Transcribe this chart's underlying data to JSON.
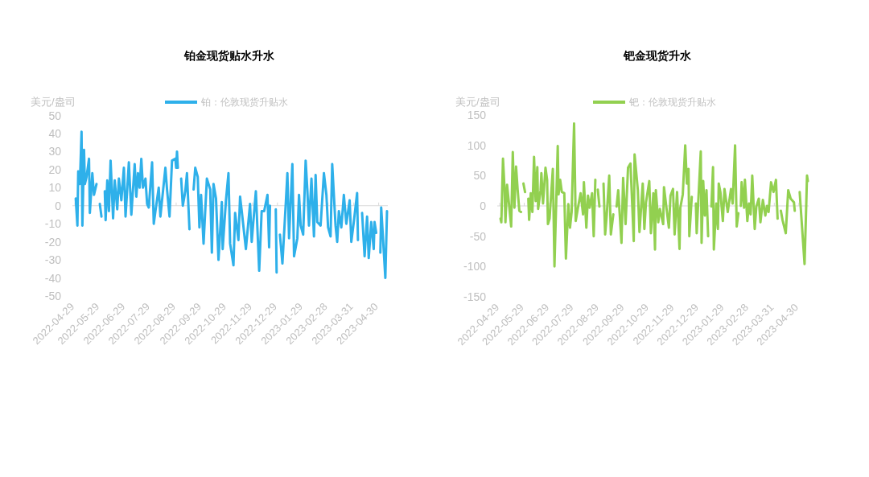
{
  "chart_data": [
    {
      "type": "line",
      "title": "铂金现货贴水升水",
      "ylabel": "美元/盎司",
      "ylim": [
        -50,
        50
      ],
      "yticks": [
        -50,
        -40,
        -30,
        -20,
        -10,
        0,
        10,
        20,
        30,
        40,
        50
      ],
      "xlim": [
        "2022-04-26",
        "2023-05-11"
      ],
      "xticks": [
        "2022-04-29",
        "2022-05-29",
        "2022-06-29",
        "2022-07-29",
        "2022-08-29",
        "2022-09-29",
        "2022-10-29",
        "2022-11-29",
        "2022-12-29",
        "2023-01-29",
        "2023-02-28",
        "2023-03-31",
        "2023-04-30"
      ],
      "legend": "top",
      "marker": "none",
      "line_style": "solid",
      "series": [
        {
          "name": "铂：伦敦现货升贴水",
          "color": "#2eb0ea",
          "x": [
            "2022-04-30",
            "2022-05-02",
            "2022-05-03",
            "2022-05-05",
            "2022-05-07",
            "2022-05-08",
            "2022-05-10",
            "2022-05-11",
            "2022-05-13",
            "2022-05-16",
            "2022-05-17",
            "2022-05-20",
            "2022-05-22",
            "2022-05-25"
          ],
          "values": [
            4,
            -11,
            19,
            12,
            41,
            -11,
            31,
            12,
            16,
            26,
            -4,
            18,
            6,
            12
          ]
        },
        {
          "color": "#2eb0ea",
          "x": [
            "2022-05-29",
            "2022-05-31"
          ],
          "values": [
            1,
            -6
          ]
        },
        {
          "color": "#2eb0ea",
          "x": [
            "2022-06-04",
            "2022-06-05",
            "2022-06-07",
            "2022-06-09",
            "2022-06-11",
            "2022-06-14",
            "2022-06-16",
            "2022-06-19",
            "2022-06-21",
            "2022-06-24",
            "2022-06-27",
            "2022-06-29",
            "2022-07-03",
            "2022-07-06",
            "2022-07-10",
            "2022-07-12",
            "2022-07-14",
            "2022-07-16",
            "2022-07-18",
            "2022-07-20",
            "2022-07-23",
            "2022-07-25",
            "2022-07-27",
            "2022-07-31",
            "2022-08-02",
            "2022-08-04",
            "2022-08-08",
            "2022-08-10",
            "2022-08-12",
            "2022-08-16",
            "2022-08-18",
            "2022-08-21",
            "2022-08-24",
            "2022-08-28",
            "2022-08-29",
            "2022-08-30",
            "2022-08-31"
          ],
          "values": [
            8,
            -8,
            14,
            -3,
            25,
            -7,
            14,
            -2,
            15,
            3,
            21,
            -6,
            24,
            -5,
            23,
            5,
            18,
            10,
            26,
            10,
            15,
            1,
            -1,
            24,
            -10,
            -3,
            10,
            -6,
            3,
            21,
            9,
            -6,
            25,
            26,
            21,
            30,
            21
          ]
        },
        {
          "color": "#2eb0ea",
          "x": [
            "2022-09-04",
            "2022-09-06",
            "2022-09-09",
            "2022-09-11",
            "2022-09-14"
          ],
          "values": [
            15,
            0,
            8,
            18,
            -13
          ]
        },
        {
          "color": "#2eb0ea",
          "x": [
            "2022-09-19",
            "2022-09-21",
            "2022-09-24",
            "2022-09-26",
            "2022-09-28",
            "2022-10-01",
            "2022-10-05",
            "2022-10-09",
            "2022-10-11",
            "2022-10-13",
            "2022-10-16",
            "2022-10-19",
            "2022-10-23",
            "2022-10-24",
            "2022-10-28",
            "2022-10-31",
            "2022-11-02",
            "2022-11-06",
            "2022-11-08",
            "2022-11-12",
            "2022-11-14",
            "2022-11-16",
            "2022-11-21",
            "2022-11-26",
            "2022-11-28",
            "2022-12-03",
            "2022-12-07",
            "2022-12-10",
            "2022-12-13",
            "2022-12-17",
            "2022-12-19",
            "2022-12-20"
          ],
          "values": [
            9,
            21,
            16,
            -12,
            6,
            -21,
            15,
            9,
            -26,
            12,
            4,
            -30,
            2,
            -24,
            3,
            18,
            -21,
            -33,
            -4,
            -19,
            5,
            -3,
            -24,
            1,
            -20,
            8,
            -36,
            -3,
            -3,
            6,
            -23,
            0
          ]
        },
        {
          "color": "#2eb0ea",
          "x": [
            "2022-12-27",
            "2022-12-28"
          ],
          "values": [
            -2,
            -37
          ]
        },
        {
          "color": "#2eb0ea",
          "x": [
            "2023-01-01",
            "2023-01-04",
            "2023-01-08",
            "2023-01-10",
            "2023-01-12",
            "2023-01-16",
            "2023-01-18",
            "2023-01-22",
            "2023-01-24",
            "2023-01-26",
            "2023-01-29",
            "2023-02-01",
            "2023-02-03",
            "2023-02-05",
            "2023-02-08",
            "2023-02-11",
            "2023-02-13",
            "2023-02-15",
            "2023-02-19",
            "2023-02-23",
            "2023-02-26",
            "2023-02-28",
            "2023-03-03",
            "2023-03-05",
            "2023-03-09",
            "2023-03-11",
            "2023-03-13",
            "2023-03-16",
            "2023-03-19",
            "2023-03-22",
            "2023-03-26",
            "2023-03-28",
            "2023-03-31",
            "2023-04-04",
            "2023-04-05"
          ],
          "values": [
            -16,
            -32,
            1,
            18,
            -18,
            23,
            -28,
            -18,
            6,
            -11,
            -16,
            25,
            9,
            -11,
            15,
            -17,
            17,
            -9,
            -11,
            18,
            6,
            -12,
            -17,
            23,
            -11,
            -20,
            -3,
            -12,
            6,
            -10,
            3,
            -20,
            -9,
            7,
            -19
          ]
        },
        {
          "color": "#2eb0ea",
          "x": [
            "2023-04-10",
            "2023-04-13",
            "2023-04-16",
            "2023-04-18",
            "2023-04-21",
            "2023-04-24",
            "2023-04-25",
            "2023-04-27"
          ],
          "values": [
            -4,
            -28,
            -6,
            -29,
            -9,
            -24,
            -9,
            -15
          ]
        },
        {
          "color": "#2eb0ea",
          "x": [
            "2023-05-02",
            "2023-05-03",
            "2023-05-08",
            "2023-05-10"
          ],
          "values": [
            -26,
            -1,
            -40,
            -3
          ]
        }
      ]
    },
    {
      "type": "line",
      "title": "钯金现货升水",
      "ylabel": "美元/盎司",
      "ylim": [
        -150,
        150
      ],
      "yticks": [
        -150,
        -100,
        -50,
        0,
        50,
        100,
        150
      ],
      "xlim": [
        "2022-04-26",
        "2023-05-12"
      ],
      "xticks": [
        "2022-04-29",
        "2022-05-29",
        "2022-06-29",
        "2022-07-29",
        "2022-08-29",
        "2022-09-29",
        "2022-10-29",
        "2022-11-29",
        "2022-12-29",
        "2023-01-29",
        "2023-02-28",
        "2023-03-31",
        "2023-04-30"
      ],
      "legend": "top",
      "marker": "none",
      "line_style": "solid",
      "series": [
        {
          "name": "钯：伦敦现货升贴水",
          "color": "#92d050",
          "x": [
            "2022-04-30",
            "2022-05-01",
            "2022-05-03",
            "2022-05-05",
            "2022-05-06",
            "2022-05-08",
            "2022-05-10",
            "2022-05-13",
            "2022-05-15",
            "2022-05-17",
            "2022-05-19",
            "2022-05-21",
            "2022-05-23",
            "2022-05-25"
          ],
          "values": [
            -21,
            -27,
            78,
            26,
            -27,
            35,
            8,
            -34,
            89,
            -3,
            65,
            26,
            -8,
            -10
          ]
        },
        {
          "color": "#92d050",
          "x": [
            "2022-05-28",
            "2022-05-30"
          ],
          "values": [
            37,
            23
          ]
        },
        {
          "color": "#92d050",
          "x": [
            "2022-06-03",
            "2022-06-04",
            "2022-06-06",
            "2022-06-08",
            "2022-06-10",
            "2022-06-12",
            "2022-06-14",
            "2022-06-15",
            "2022-06-18",
            "2022-06-19",
            "2022-06-21",
            "2022-06-24",
            "2022-06-26",
            "2022-06-27",
            "2022-06-29",
            "2022-07-03",
            "2022-07-05",
            "2022-07-09",
            "2022-07-10",
            "2022-07-12",
            "2022-07-14",
            "2022-07-17",
            "2022-07-19",
            "2022-07-22",
            "2022-07-24",
            "2022-07-26",
            "2022-07-29",
            "2022-07-31",
            "2022-08-03",
            "2022-08-06",
            "2022-08-09",
            "2022-08-10",
            "2022-08-13",
            "2022-08-15",
            "2022-08-17",
            "2022-08-20",
            "2022-08-22",
            "2022-08-24"
          ],
          "values": [
            12,
            -23,
            21,
            -10,
            81,
            8,
            64,
            -5,
            26,
            54,
            4,
            63,
            43,
            -30,
            -21,
            61,
            -100,
            99,
            19,
            43,
            23,
            21,
            -87,
            3,
            -36,
            -10,
            136,
            -25,
            -1,
            21,
            -14,
            39,
            -36,
            17,
            -3,
            21,
            -50,
            43
          ]
        },
        {
          "color": "#92d050",
          "x": [
            "2022-08-27",
            "2022-08-29"
          ],
          "values": [
            27,
            -1
          ]
        },
        {
          "color": "#92d050",
          "x": [
            "2022-09-03",
            "2022-09-05",
            "2022-09-07",
            "2022-09-10",
            "2022-09-12",
            "2022-09-15"
          ],
          "values": [
            37,
            -47,
            -14,
            50,
            -47,
            -14
          ]
        },
        {
          "color": "#92d050",
          "x": [
            "2022-09-19",
            "2022-09-21",
            "2022-09-25",
            "2022-09-27",
            "2022-09-30",
            "2022-10-03",
            "2022-10-06",
            "2022-10-10",
            "2022-10-11",
            "2022-10-15",
            "2022-10-17",
            "2022-10-21",
            "2022-10-23",
            "2022-10-25",
            "2022-10-29",
            "2022-10-31",
            "2022-11-03",
            "2022-11-05",
            "2022-11-06",
            "2022-11-09",
            "2022-11-11",
            "2022-11-15",
            "2022-11-16",
            "2022-11-19",
            "2022-11-22",
            "2022-11-24",
            "2022-11-27",
            "2022-11-29",
            "2022-12-02",
            "2022-12-05",
            "2022-12-06",
            "2022-12-09",
            "2022-12-12",
            "2022-12-14",
            "2022-12-16",
            "2022-12-17",
            "2022-12-20"
          ],
          "values": [
            -1,
            26,
            -61,
            46,
            -30,
            63,
            70,
            -58,
            85,
            26,
            -43,
            37,
            -38,
            6,
            41,
            -45,
            21,
            -72,
            26,
            -27,
            -5,
            -30,
            31,
            -3,
            -36,
            17,
            28,
            -47,
            23,
            -71,
            -3,
            19,
            100,
            37,
            61,
            -50,
            15
          ]
        },
        {
          "color": "#92d050",
          "x": [
            "2022-12-25",
            "2022-12-26",
            "2022-12-31",
            "2023-01-01",
            "2023-01-03",
            "2023-01-05",
            "2023-01-07",
            "2023-01-09"
          ],
          "values": [
            4,
            -45,
            90,
            -61,
            41,
            -16,
            26,
            -50
          ]
        },
        {
          "color": "#92d050",
          "x": [
            "2023-01-13",
            "2023-01-15",
            "2023-01-16",
            "2023-01-19",
            "2023-01-21",
            "2023-01-22",
            "2023-01-24",
            "2023-01-27",
            "2023-01-29",
            "2023-02-02",
            "2023-02-06",
            "2023-02-08",
            "2023-02-11",
            "2023-02-13",
            "2023-02-15"
          ],
          "values": [
            -1,
            64,
            -72,
            4,
            -38,
            37,
            23,
            -25,
            28,
            -10,
            28,
            4,
            100,
            -34,
            -12
          ]
        },
        {
          "color": "#92d050",
          "x": [
            "2023-02-18",
            "2023-02-19",
            "2023-02-22",
            "2023-02-23",
            "2023-02-26",
            "2023-02-28",
            "2023-03-02",
            "2023-03-04",
            "2023-03-07",
            "2023-03-09",
            "2023-03-12",
            "2023-03-14",
            "2023-03-17",
            "2023-03-20",
            "2023-03-22",
            "2023-03-24",
            "2023-03-27",
            "2023-03-30",
            "2023-04-02",
            "2023-04-04"
          ],
          "values": [
            0,
            39,
            -3,
            43,
            -25,
            4,
            -14,
            50,
            -38,
            -1,
            12,
            -27,
            10,
            -16,
            0,
            -10,
            39,
            23,
            43,
            -21
          ]
        },
        {
          "color": "#92d050",
          "x": [
            "2023-04-08",
            "2023-04-10",
            "2023-04-14",
            "2023-04-17",
            "2023-04-20",
            "2023-04-24",
            "2023-04-25"
          ],
          "values": [
            -8,
            -23,
            -45,
            26,
            12,
            6,
            -8
          ]
        },
        {
          "color": "#92d050",
          "x": [
            "2023-05-01",
            "2023-05-07",
            "2023-05-09",
            "2023-05-10",
            "2023-05-11"
          ],
          "values": [
            23,
            -96,
            -1,
            50,
            41
          ]
        }
      ]
    }
  ]
}
